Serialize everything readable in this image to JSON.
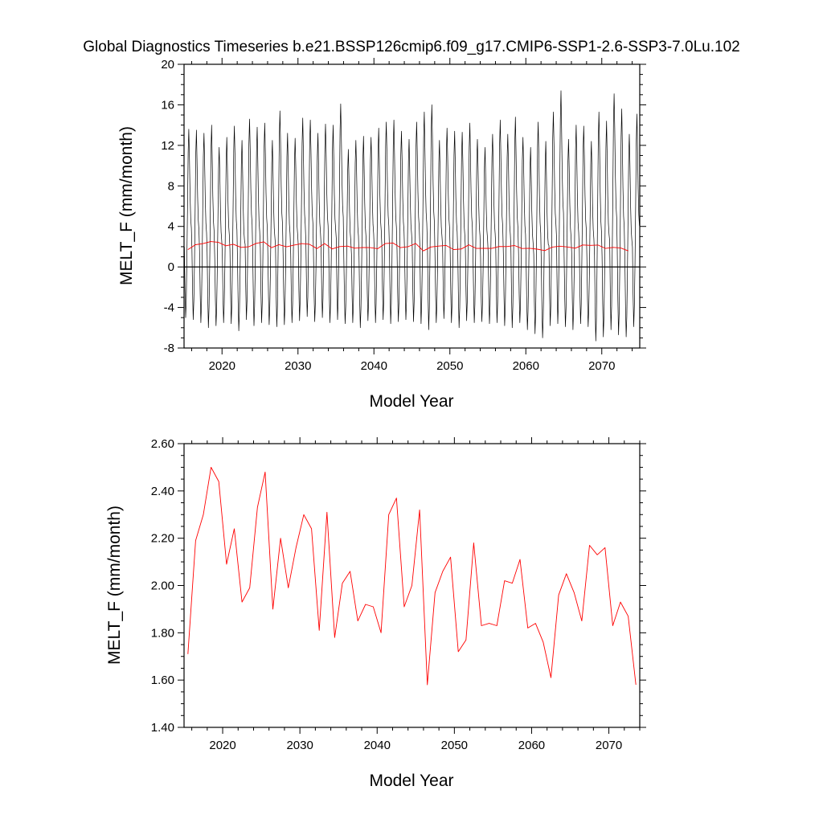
{
  "figure": {
    "title": "Global Diagnostics Timeseries b.e21.BSSP126cmip6.f09_g17.CMIP6-SSP1-2.6-SSP3-7.0Lu.102"
  },
  "chart_data": [
    {
      "type": "line",
      "xlabel": "Model Year",
      "ylabel": "MELT_F (mm/month)",
      "xlim": [
        2015,
        2075
      ],
      "ylim": [
        -8,
        20
      ],
      "x_ticks": [
        2020,
        2030,
        2040,
        2050,
        2060,
        2070
      ],
      "y_ticks": [
        -8,
        -4,
        0,
        4,
        8,
        12,
        16,
        20
      ],
      "y_tick_labels": [
        "-8",
        "-4",
        "0",
        "4",
        "8",
        "12",
        "16",
        "20"
      ],
      "zero_line": true,
      "grid": false,
      "series": [
        {
          "kind": "monthly",
          "color": "#000000",
          "annual_peaks": [
            13.6,
            13.5,
            13.2,
            14.0,
            11.8,
            12.8,
            13.9,
            12.5,
            14.6,
            13.8,
            14.2,
            12.5,
            15.4,
            13.2,
            12.7,
            14.7,
            14.5,
            13.2,
            14.1,
            14.0,
            16.1,
            11.6,
            12.5,
            12.9,
            12.8,
            13.7,
            14.3,
            14.5,
            13.4,
            12.6,
            14.3,
            15.3,
            16.0,
            12.5,
            13.7,
            13.4,
            13.3,
            14.2,
            12.6,
            11.8,
            13.1,
            14.5,
            13.1,
            14.8,
            12.8,
            11.8,
            14.3,
            12.4,
            15.3,
            17.4,
            12.6,
            14.0,
            13.9,
            12.4,
            15.3,
            14.4,
            17.1,
            15.6,
            13.1,
            15.1
          ],
          "annual_troughs": [
            -5.0,
            -5.2,
            -5.5,
            -6.0,
            -5.8,
            -5.5,
            -5.6,
            -6.3,
            -5.2,
            -5.8,
            -5.5,
            -5.7,
            -5.9,
            -5.7,
            -5.5,
            -5.3,
            -4.9,
            -5.4,
            -5.0,
            -5.5,
            -5.2,
            -5.6,
            -5.5,
            -6.0,
            -5.3,
            -5.5,
            -5.2,
            -5.6,
            -5.4,
            -5.2,
            -5.4,
            -5.6,
            -6.2,
            -5.5,
            -5.1,
            -5.5,
            -6.0,
            -5.3,
            -5.5,
            -5.4,
            -5.6,
            -5.5,
            -5.8,
            -6.0,
            -5.5,
            -6.2,
            -6.6,
            -7.0,
            -5.8,
            -5.6,
            -5.9,
            -6.2,
            -5.6,
            -5.9,
            -7.3,
            -6.9,
            -6.2,
            -6.7,
            -6.9,
            -5.9
          ]
        },
        {
          "kind": "annual_mean",
          "color": "#ff0000",
          "x": [
            2015.5,
            2016.5,
            2017.5,
            2018.5,
            2019.5,
            2020.5,
            2021.5,
            2022.5,
            2023.5,
            2024.5,
            2025.5,
            2026.5,
            2027.5,
            2028.5,
            2029.5,
            2030.5,
            2031.5,
            2032.5,
            2033.5,
            2034.5,
            2035.5,
            2036.5,
            2037.5,
            2038.5,
            2039.5,
            2040.5,
            2041.5,
            2042.5,
            2043.5,
            2044.5,
            2045.5,
            2046.5,
            2047.5,
            2048.5,
            2049.5,
            2050.5,
            2051.5,
            2052.5,
            2053.5,
            2054.5,
            2055.5,
            2056.5,
            2057.5,
            2058.5,
            2059.5,
            2060.5,
            2061.5,
            2062.5,
            2063.5,
            2064.5,
            2065.5,
            2066.5,
            2067.5,
            2068.5,
            2069.5,
            2070.5,
            2071.5,
            2072.5,
            2073.5
          ],
          "y": [
            1.71,
            2.19,
            2.3,
            2.5,
            2.44,
            2.09,
            2.24,
            1.93,
            1.99,
            2.33,
            2.48,
            1.9,
            2.2,
            1.99,
            2.16,
            2.3,
            2.24,
            1.81,
            2.31,
            1.78,
            2.01,
            2.06,
            1.85,
            1.92,
            1.91,
            1.8,
            2.3,
            2.37,
            1.91,
            2.0,
            2.32,
            1.58,
            1.97,
            2.06,
            2.12,
            1.72,
            1.77,
            2.18,
            1.83,
            1.84,
            1.83,
            2.02,
            2.01,
            2.11,
            1.82,
            1.84,
            1.76,
            1.61,
            1.96,
            2.05,
            1.97,
            1.85,
            2.17,
            2.13,
            2.16,
            1.83,
            1.93,
            1.87,
            1.58
          ]
        }
      ]
    },
    {
      "type": "line",
      "xlabel": "Model Year",
      "ylabel": "MELT_F (mm/month)",
      "xlim": [
        2015,
        2074
      ],
      "ylim": [
        1.4,
        2.6
      ],
      "x_ticks": [
        2020,
        2030,
        2040,
        2050,
        2060,
        2070
      ],
      "y_ticks": [
        1.4,
        1.6,
        1.8,
        2.0,
        2.2,
        2.4,
        2.6
      ],
      "y_tick_labels": [
        "1.40",
        "1.60",
        "1.80",
        "2.00",
        "2.20",
        "2.40",
        "2.60"
      ],
      "grid": false,
      "series": [
        {
          "kind": "annual_mean",
          "color": "#ff0000",
          "x": [
            2015.5,
            2016.5,
            2017.5,
            2018.5,
            2019.5,
            2020.5,
            2021.5,
            2022.5,
            2023.5,
            2024.5,
            2025.5,
            2026.5,
            2027.5,
            2028.5,
            2029.5,
            2030.5,
            2031.5,
            2032.5,
            2033.5,
            2034.5,
            2035.5,
            2036.5,
            2037.5,
            2038.5,
            2039.5,
            2040.5,
            2041.5,
            2042.5,
            2043.5,
            2044.5,
            2045.5,
            2046.5,
            2047.5,
            2048.5,
            2049.5,
            2050.5,
            2051.5,
            2052.5,
            2053.5,
            2054.5,
            2055.5,
            2056.5,
            2057.5,
            2058.5,
            2059.5,
            2060.5,
            2061.5,
            2062.5,
            2063.5,
            2064.5,
            2065.5,
            2066.5,
            2067.5,
            2068.5,
            2069.5,
            2070.5,
            2071.5,
            2072.5,
            2073.5
          ],
          "y": [
            1.71,
            2.19,
            2.3,
            2.5,
            2.44,
            2.09,
            2.24,
            1.93,
            1.99,
            2.33,
            2.48,
            1.9,
            2.2,
            1.99,
            2.16,
            2.3,
            2.24,
            1.81,
            2.31,
            1.78,
            2.01,
            2.06,
            1.85,
            1.92,
            1.91,
            1.8,
            2.3,
            2.37,
            1.91,
            2.0,
            2.32,
            1.58,
            1.97,
            2.06,
            2.12,
            1.72,
            1.77,
            2.18,
            1.83,
            1.84,
            1.83,
            2.02,
            2.01,
            2.11,
            1.82,
            1.84,
            1.76,
            1.61,
            1.96,
            2.05,
            1.97,
            1.85,
            2.17,
            2.13,
            2.16,
            1.83,
            1.93,
            1.87,
            1.58
          ]
        }
      ]
    }
  ]
}
